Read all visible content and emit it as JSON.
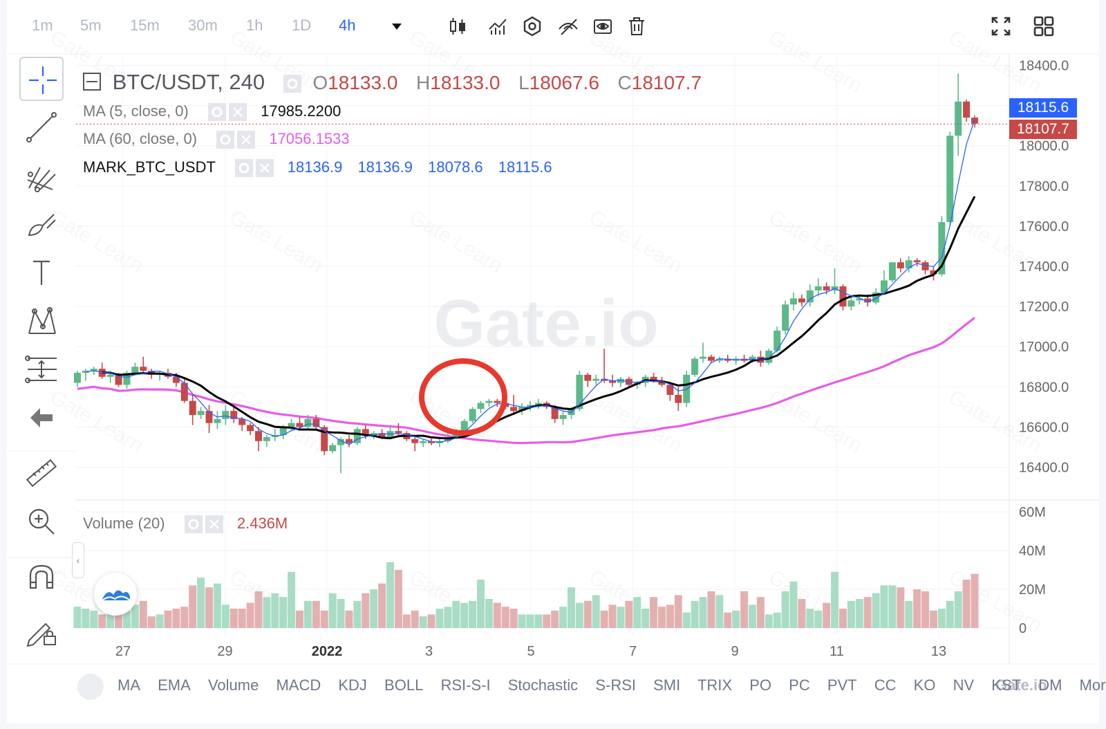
{
  "toolbar": {
    "intervals": [
      "1m",
      "5m",
      "15m",
      "30m",
      "1h",
      "1D",
      "4h"
    ],
    "active_interval": "4h",
    "icons": [
      "candle-type-icon",
      "indicators-icon",
      "settings-hex-icon",
      "hide-drawings-icon",
      "eye-icon",
      "trash-icon"
    ],
    "right_icons": [
      "fullscreen-icon",
      "layout-grid-icon"
    ]
  },
  "sidebar_tools": [
    "crosshair-icon",
    "trend-line-icon",
    "pitchfork-icon",
    "brush-icon",
    "text-icon",
    "pattern-icon",
    "fib-icon",
    "back-arrow-icon",
    "ruler-icon",
    "zoom-in-icon",
    "magnet-icon",
    "lock-drawing-icon"
  ],
  "legend": {
    "symbol": "BTC/USDT, 240",
    "o_label": "O",
    "o_value": "18133.0",
    "h_label": "H",
    "h_value": "18133.0",
    "l_label": "L",
    "l_value": "18067.6",
    "c_label": "C",
    "c_value": "18107.7",
    "ma5_label": "MA (5, close, 0)",
    "ma5_value": "17985.2200",
    "ma60_label": "MA (60, close, 0)",
    "ma60_value": "17056.1533",
    "mark_label": "MARK_BTC_USDT",
    "mark_values": [
      "18136.9",
      "18136.9",
      "18078.6",
      "18115.6"
    ],
    "volume_label": "Volume (20)",
    "volume_value": "2.436M"
  },
  "price_badges": {
    "mark": "18115.6",
    "last": "18107.7"
  },
  "indicator_tabs": [
    "MA",
    "EMA",
    "Volume",
    "MACD",
    "KDJ",
    "BOLL",
    "RSI-S-I",
    "Stochastic",
    "S-RSI",
    "SMI",
    "TRIX",
    "PO",
    "PC",
    "PVT",
    "CC",
    "KO",
    "NV",
    "KST",
    "DM",
    "Mor"
  ],
  "watermark": {
    "center": "Gate.io",
    "corner": "Gate.io",
    "tile": "Gate Learn"
  },
  "colors": {
    "up": "#5db88a",
    "down": "#c64848",
    "up_vol": "#a9dcc4",
    "down_vol": "#e3b0b0",
    "ma5": "#2962ff",
    "ma_black": "#000000",
    "ma60": "#e75ce8",
    "accent": "#2962ff",
    "highlight_circle": "#e8392c"
  },
  "chart_data": {
    "type": "candlestick",
    "x_ticks": [
      "27",
      "29",
      "2022",
      "3",
      "5",
      "7",
      "9",
      "11",
      "13"
    ],
    "y_ticks": [
      "18400.0",
      "18200.0",
      "18000.0",
      "17800.0",
      "17600.0",
      "17400.0",
      "17200.0",
      "17000.0",
      "16800.0",
      "16600.0",
      "16400.0"
    ],
    "ylim": [
      16240,
      18450
    ],
    "volume_ticks": [
      "60M",
      "40M",
      "20M",
      "0"
    ],
    "volume_ylim": [
      0,
      60
    ],
    "ohlc": [
      [
        16820,
        16880,
        16800,
        16870
      ],
      [
        16870,
        16890,
        16830,
        16880
      ],
      [
        16880,
        16900,
        16860,
        16890
      ],
      [
        16890,
        16920,
        16840,
        16850
      ],
      [
        16850,
        16880,
        16820,
        16860
      ],
      [
        16860,
        16870,
        16800,
        16810
      ],
      [
        16810,
        16880,
        16790,
        16870
      ],
      [
        16870,
        16920,
        16860,
        16900
      ],
      [
        16900,
        16950,
        16870,
        16880
      ],
      [
        16880,
        16890,
        16840,
        16860
      ],
      [
        16860,
        16880,
        16830,
        16870
      ],
      [
        16870,
        16890,
        16840,
        16850
      ],
      [
        16850,
        16870,
        16800,
        16820
      ],
      [
        16820,
        16840,
        16720,
        16730
      ],
      [
        16730,
        16760,
        16610,
        16660
      ],
      [
        16660,
        16700,
        16640,
        16680
      ],
      [
        16680,
        16710,
        16570,
        16620
      ],
      [
        16620,
        16680,
        16590,
        16640
      ],
      [
        16640,
        16710,
        16610,
        16680
      ],
      [
        16680,
        16700,
        16620,
        16640
      ],
      [
        16640,
        16650,
        16580,
        16610
      ],
      [
        16610,
        16620,
        16560,
        16580
      ],
      [
        16580,
        16600,
        16480,
        16530
      ],
      [
        16530,
        16560,
        16500,
        16550
      ],
      [
        16550,
        16590,
        16530,
        16560
      ],
      [
        16560,
        16610,
        16540,
        16600
      ],
      [
        16600,
        16640,
        16580,
        16620
      ],
      [
        16620,
        16650,
        16590,
        16600
      ],
      [
        16600,
        16660,
        16590,
        16640
      ],
      [
        16640,
        16660,
        16590,
        16600
      ],
      [
        16600,
        16610,
        16460,
        16480
      ],
      [
        16480,
        16520,
        16470,
        16510
      ],
      [
        16510,
        16550,
        16370,
        16540
      ],
      [
        16540,
        16560,
        16500,
        16520
      ],
      [
        16520,
        16600,
        16510,
        16590
      ],
      [
        16590,
        16610,
        16540,
        16560
      ],
      [
        16560,
        16580,
        16540,
        16570
      ],
      [
        16570,
        16590,
        16540,
        16550
      ],
      [
        16550,
        16600,
        16540,
        16580
      ],
      [
        16580,
        16620,
        16560,
        16570
      ],
      [
        16570,
        16580,
        16530,
        16540
      ],
      [
        16540,
        16560,
        16480,
        16520
      ],
      [
        16520,
        16540,
        16500,
        16530
      ],
      [
        16530,
        16550,
        16510,
        16520
      ],
      [
        16520,
        16540,
        16500,
        16530
      ],
      [
        16530,
        16570,
        16520,
        16550
      ],
      [
        16550,
        16590,
        16540,
        16580
      ],
      [
        16580,
        16640,
        16570,
        16630
      ],
      [
        16630,
        16700,
        16620,
        16690
      ],
      [
        16690,
        16730,
        16670,
        16720
      ],
      [
        16720,
        16740,
        16700,
        16730
      ],
      [
        16730,
        16740,
        16700,
        16720
      ],
      [
        16720,
        16730,
        16690,
        16700
      ],
      [
        16700,
        16760,
        16660,
        16680
      ],
      [
        16680,
        16720,
        16660,
        16700
      ],
      [
        16700,
        16730,
        16680,
        16710
      ],
      [
        16710,
        16740,
        16690,
        16720
      ],
      [
        16720,
        16730,
        16690,
        16700
      ],
      [
        16700,
        16710,
        16620,
        16640
      ],
      [
        16640,
        16680,
        16610,
        16660
      ],
      [
        16660,
        16700,
        16640,
        16690
      ],
      [
        16690,
        16880,
        16680,
        16860
      ],
      [
        16860,
        16870,
        16800,
        16830
      ],
      [
        16830,
        16860,
        16810,
        16840
      ],
      [
        16840,
        16990,
        16820,
        16830
      ],
      [
        16830,
        16860,
        16800,
        16820
      ],
      [
        16820,
        16850,
        16800,
        16840
      ],
      [
        16840,
        16850,
        16800,
        16810
      ],
      [
        16810,
        16830,
        16790,
        16820
      ],
      [
        16820,
        16860,
        16800,
        16850
      ],
      [
        16850,
        16870,
        16820,
        16830
      ],
      [
        16830,
        16850,
        16800,
        16810
      ],
      [
        16810,
        16820,
        16730,
        16760
      ],
      [
        16760,
        16800,
        16680,
        16720
      ],
      [
        16720,
        16880,
        16700,
        16860
      ],
      [
        16860,
        16950,
        16850,
        16940
      ],
      [
        16940,
        17020,
        16920,
        16950
      ],
      [
        16950,
        16960,
        16920,
        16930
      ],
      [
        16930,
        16950,
        16920,
        16940
      ],
      [
        16940,
        16960,
        16920,
        16930
      ],
      [
        16930,
        16950,
        16910,
        16940
      ],
      [
        16940,
        16960,
        16920,
        16930
      ],
      [
        16930,
        16960,
        16920,
        16950
      ],
      [
        16950,
        16980,
        16900,
        16920
      ],
      [
        16920,
        16990,
        16910,
        16980
      ],
      [
        16980,
        17100,
        16970,
        17080
      ],
      [
        17080,
        17230,
        17060,
        17210
      ],
      [
        17210,
        17270,
        17180,
        17240
      ],
      [
        17240,
        17260,
        17200,
        17220
      ],
      [
        17220,
        17310,
        17200,
        17280
      ],
      [
        17280,
        17340,
        17250,
        17300
      ],
      [
        17300,
        17320,
        17260,
        17280
      ],
      [
        17280,
        17390,
        17260,
        17300
      ],
      [
        17300,
        17310,
        17180,
        17200
      ],
      [
        17200,
        17250,
        17180,
        17230
      ],
      [
        17230,
        17260,
        17210,
        17240
      ],
      [
        17240,
        17260,
        17200,
        17220
      ],
      [
        17220,
        17290,
        17210,
        17270
      ],
      [
        17270,
        17380,
        17260,
        17330
      ],
      [
        17330,
        17420,
        17320,
        17420
      ],
      [
        17420,
        17440,
        17370,
        17390
      ],
      [
        17390,
        17450,
        17370,
        17430
      ],
      [
        17430,
        17440,
        17400,
        17420
      ],
      [
        17420,
        17430,
        17360,
        17380
      ],
      [
        17380,
        17400,
        17330,
        17360
      ],
      [
        17360,
        17650,
        17350,
        17620
      ],
      [
        17620,
        18070,
        17600,
        18050
      ],
      [
        18050,
        18360,
        17950,
        18220
      ],
      [
        18220,
        18230,
        18120,
        18140
      ],
      [
        18140,
        18150,
        18090,
        18110
      ]
    ],
    "volume_millions": [
      11,
      10,
      9,
      7,
      8,
      10,
      9,
      12,
      14,
      6,
      7,
      9,
      10,
      11,
      22,
      26,
      21,
      23,
      12,
      10,
      10,
      13,
      19,
      16,
      18,
      16,
      29,
      9,
      14,
      14,
      9,
      18,
      15,
      9,
      14,
      18,
      20,
      23,
      34,
      30,
      7,
      9,
      6,
      7,
      10,
      11,
      14,
      13,
      14,
      25,
      15,
      13,
      11,
      10,
      7,
      7,
      7,
      7,
      9,
      11,
      21,
      13,
      14,
      17,
      9,
      12,
      11,
      14,
      16,
      10,
      16,
      11,
      12,
      17,
      8,
      14,
      16,
      19,
      17,
      8,
      9,
      19,
      12,
      16,
      7,
      8,
      19,
      24,
      15,
      10,
      9,
      13,
      29,
      10,
      14,
      15,
      16,
      18,
      22,
      22,
      21,
      14,
      20,
      19,
      9,
      10,
      14,
      19,
      25,
      28
    ]
  }
}
